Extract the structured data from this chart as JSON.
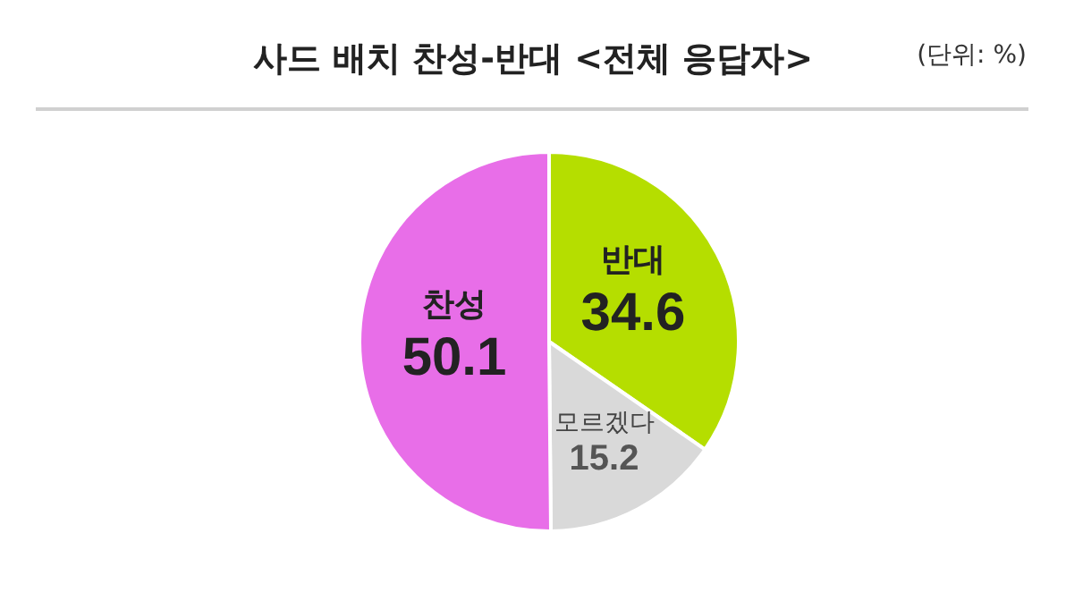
{
  "chart_data": {
    "type": "pie",
    "title": "사드 배치 찬성-반대 <전체 응답자>",
    "annotations": [
      "(단위: %)"
    ],
    "categories": [
      "반대",
      "모르겠다",
      "찬성"
    ],
    "values": [
      34.6,
      15.2,
      50.1
    ],
    "colors": [
      "#b5de00",
      "#d9d9d9",
      "#e86ee8"
    ],
    "data_labels": true,
    "legend": false
  }
}
